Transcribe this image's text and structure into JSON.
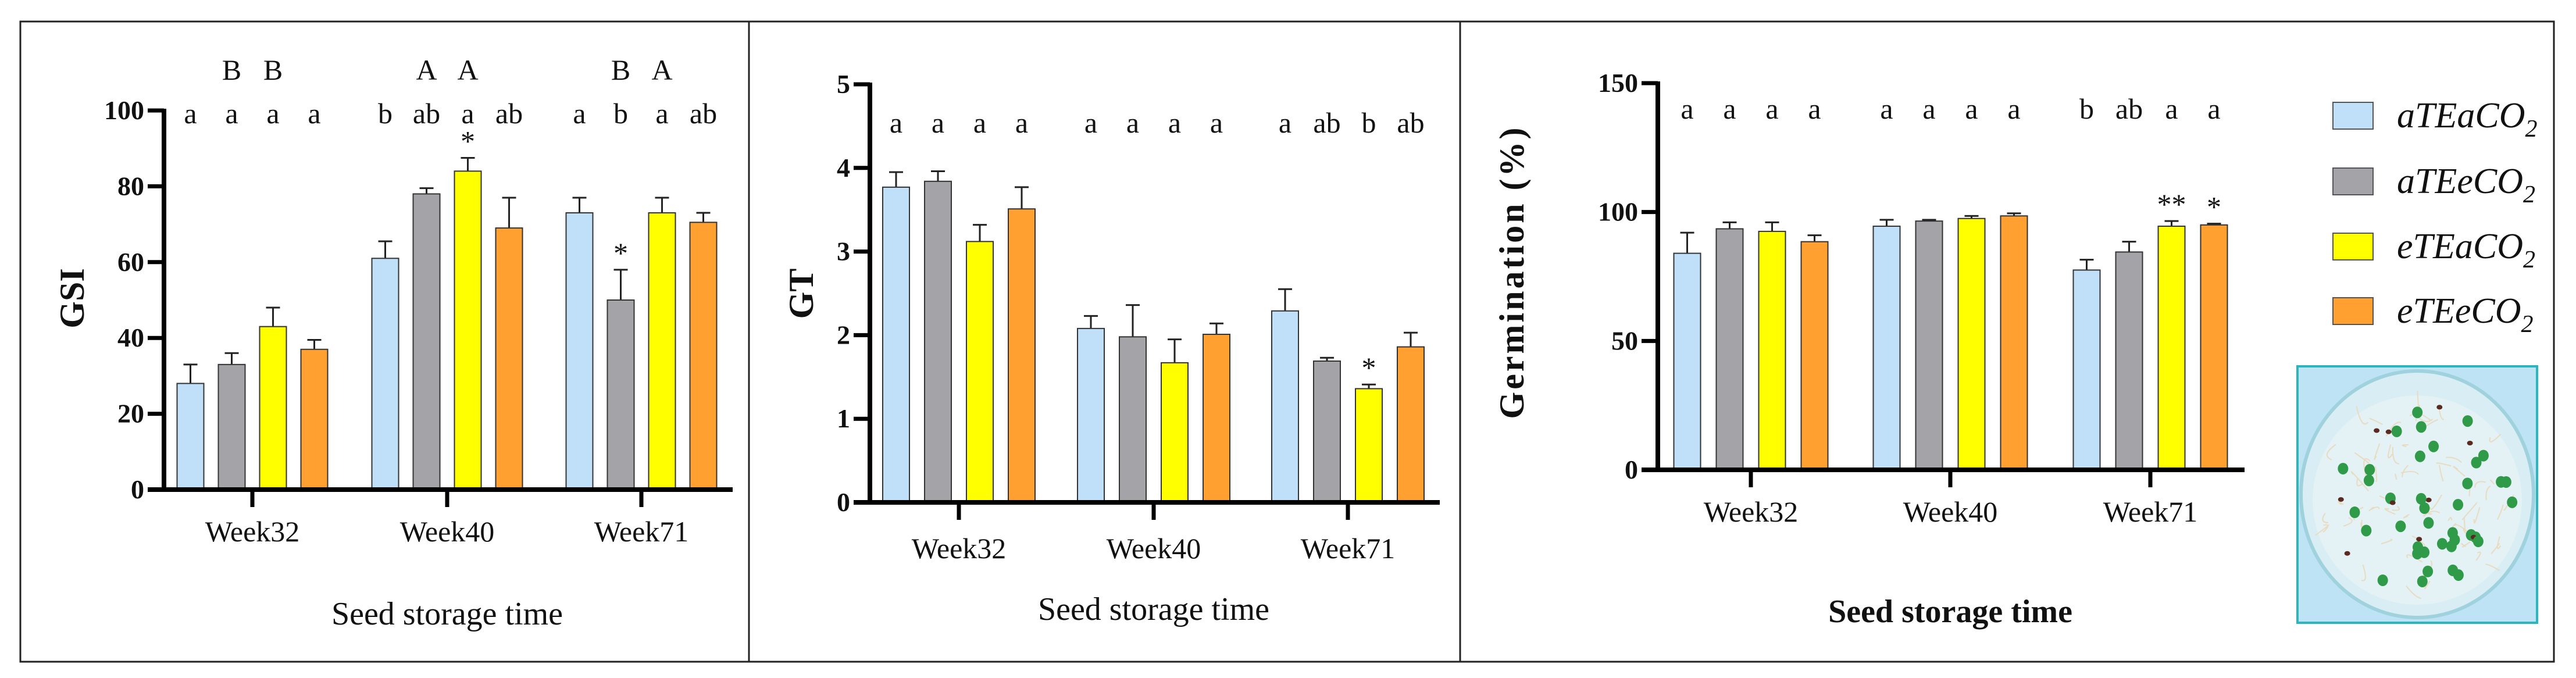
{
  "legend": [
    {
      "name": "aTEaCO2",
      "color": "#c0dff8"
    },
    {
      "name": "aTEeCO2",
      "color": "#a4a4a8"
    },
    {
      "name": "eTEaCO2",
      "color": "#ffff00"
    },
    {
      "name": "eTEeCO2",
      "color": "#ffa030"
    }
  ],
  "chart_data": [
    {
      "type": "bar",
      "ylabel": "GSI",
      "xlabel": "Seed storage time",
      "categories": [
        "Week32",
        "Week40",
        "Week71"
      ],
      "ylim": [
        0,
        100
      ],
      "yticks": [
        0,
        20,
        40,
        60,
        80,
        100
      ],
      "grid": false,
      "series": [
        {
          "name": "aTEaCO2",
          "values": [
            28,
            61,
            73
          ],
          "errors": [
            5,
            4.5,
            4
          ]
        },
        {
          "name": "aTEeCO2",
          "values": [
            33,
            78,
            50
          ],
          "errors": [
            3,
            1.5,
            8
          ]
        },
        {
          "name": "eTEaCO2",
          "values": [
            43,
            84,
            73
          ],
          "errors": [
            5,
            3.5,
            4
          ]
        },
        {
          "name": "eTEeCO2",
          "values": [
            37,
            69,
            70.5
          ],
          "errors": [
            2.5,
            8,
            2.5
          ]
        }
      ],
      "letters": [
        [
          "a",
          "a",
          "a",
          "a"
        ],
        [
          "b",
          "ab",
          "a",
          "ab"
        ],
        [
          "a",
          "b",
          "a",
          "ab"
        ]
      ],
      "upper_letters": [
        [
          "",
          "B",
          "B",
          ""
        ],
        [
          "",
          "A",
          "A",
          ""
        ],
        [
          "",
          "B",
          "A",
          ""
        ]
      ],
      "stars": [
        [
          "",
          "",
          "",
          ""
        ],
        [
          "",
          "",
          "*",
          ""
        ],
        [
          "",
          "*",
          "",
          ""
        ]
      ]
    },
    {
      "type": "bar",
      "ylabel": "GT",
      "xlabel": "Seed storage time",
      "categories": [
        "Week32",
        "Week40",
        "Week71"
      ],
      "ylim": [
        0,
        5
      ],
      "yticks": [
        0,
        1,
        2,
        3,
        4,
        5
      ],
      "grid": false,
      "series": [
        {
          "name": "aTEaCO2",
          "values": [
            3.77,
            2.08,
            2.29
          ],
          "errors": [
            0.18,
            0.15,
            0.26
          ]
        },
        {
          "name": "aTEeCO2",
          "values": [
            3.84,
            1.98,
            1.69
          ],
          "errors": [
            0.12,
            0.38,
            0.04
          ]
        },
        {
          "name": "eTEaCO2",
          "values": [
            3.12,
            1.67,
            1.36
          ],
          "errors": [
            0.2,
            0.28,
            0.05
          ]
        },
        {
          "name": "eTEeCO2",
          "values": [
            3.51,
            2.01,
            1.86
          ],
          "errors": [
            0.26,
            0.13,
            0.17
          ]
        }
      ],
      "letters": [
        [
          "a",
          "a",
          "a",
          "a"
        ],
        [
          "a",
          "a",
          "a",
          "a"
        ],
        [
          "a",
          "ab",
          "b",
          "ab"
        ]
      ],
      "upper_letters": [
        [
          "",
          "",
          "",
          ""
        ],
        [
          "",
          "",
          "",
          ""
        ],
        [
          "",
          "",
          "",
          ""
        ]
      ],
      "stars": [
        [
          "",
          "",
          "",
          ""
        ],
        [
          "",
          "",
          "",
          ""
        ],
        [
          "",
          "",
          "*",
          ""
        ]
      ]
    },
    {
      "type": "bar",
      "ylabel": "Germination (%)",
      "xlabel": "Seed storage time",
      "categories": [
        "Week32",
        "Week40",
        "Week71"
      ],
      "ylim": [
        0,
        150
      ],
      "yticks": [
        0,
        50,
        100,
        150
      ],
      "grid": false,
      "legend_position": "right",
      "series": [
        {
          "name": "aTEaCO2",
          "values": [
            84,
            94.5,
            77.5
          ],
          "errors": [
            8,
            2.5,
            4
          ]
        },
        {
          "name": "aTEeCO2",
          "values": [
            93.5,
            96.5,
            84.5
          ],
          "errors": [
            2.5,
            0.5,
            4
          ]
        },
        {
          "name": "eTEaCO2",
          "values": [
            92.5,
            97.5,
            94.5
          ],
          "errors": [
            3.5,
            1,
            2
          ]
        },
        {
          "name": "eTEeCO2",
          "values": [
            88.5,
            98.5,
            95
          ],
          "errors": [
            2.5,
            1,
            0.5
          ]
        }
      ],
      "letters": [
        [
          "a",
          "a",
          "a",
          "a"
        ],
        [
          "a",
          "a",
          "a",
          "a"
        ],
        [
          "b",
          "ab",
          "a",
          "a"
        ]
      ],
      "upper_letters": [
        [
          "",
          "",
          "",
          ""
        ],
        [
          "",
          "",
          "",
          ""
        ],
        [
          "",
          "",
          "",
          ""
        ]
      ],
      "stars": [
        [
          "",
          "",
          "",
          ""
        ],
        [
          "",
          "",
          "",
          ""
        ],
        [
          "",
          "",
          "**",
          "*"
        ]
      ]
    }
  ]
}
